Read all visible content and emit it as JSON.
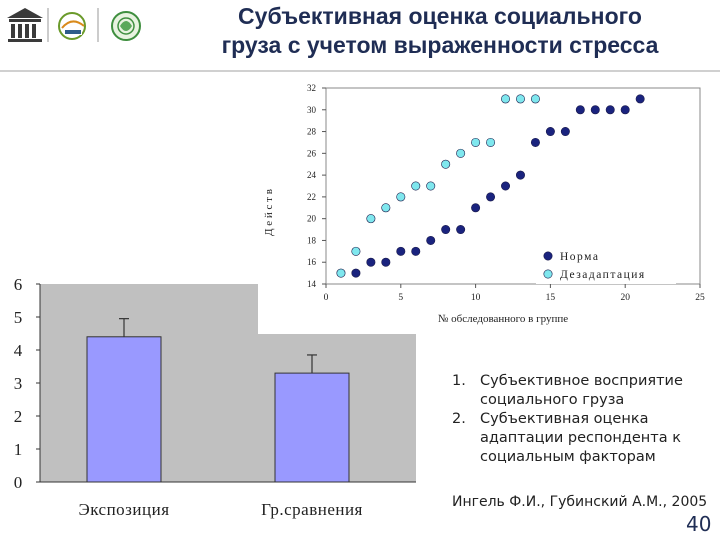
{
  "slide": {
    "title_line1": "Субъективная оценка социального",
    "title_line2": "груза с учетом выраженности стресса",
    "notes": [
      {
        "num": "1.",
        "text": "Субъективное восприятие социального груза"
      },
      {
        "num": "2.",
        "text": "Субъективная оценка адаптации респондента к социальным факторам"
      }
    ],
    "citation": "Ингель Ф.И., Губинский А.М., 2005",
    "page_number": "40",
    "logos": [
      "unesco-logo",
      "unitwin-logo",
      "green-emblem-logo"
    ]
  },
  "chart_data": [
    {
      "type": "scatter",
      "xlabel": "№ обследованного в группе",
      "ylabel": "Д е й с т в",
      "xlim": [
        0,
        25
      ],
      "ylim": [
        14,
        32
      ],
      "x_ticks": [
        "0",
        "5",
        "10",
        "15",
        "20",
        "25"
      ],
      "y_ticks": [
        "14",
        "16",
        "18",
        "20",
        "22",
        "24",
        "26",
        "28",
        "30",
        "32"
      ],
      "legend_position": "bottom-right",
      "series": [
        {
          "name": "Норма",
          "color": "#1a237e",
          "points": [
            [
              2,
              15
            ],
            [
              3,
              16
            ],
            [
              4,
              16
            ],
            [
              5,
              17
            ],
            [
              6,
              17
            ],
            [
              7,
              18
            ],
            [
              8,
              19
            ],
            [
              9,
              19
            ],
            [
              10,
              21
            ],
            [
              11,
              22
            ],
            [
              12,
              23
            ],
            [
              13,
              24
            ],
            [
              14,
              27
            ],
            [
              15,
              28
            ],
            [
              16,
              28
            ],
            [
              17,
              30
            ],
            [
              18,
              30
            ],
            [
              19,
              30
            ],
            [
              20,
              30
            ],
            [
              21,
              31
            ]
          ]
        },
        {
          "name": "Дезадаптация",
          "color": "#7fe7ee",
          "points": [
            [
              1,
              15
            ],
            [
              2,
              17
            ],
            [
              3,
              20
            ],
            [
              4,
              21
            ],
            [
              5,
              22
            ],
            [
              6,
              23
            ],
            [
              7,
              23
            ],
            [
              8,
              25
            ],
            [
              9,
              26
            ],
            [
              10,
              27
            ],
            [
              11,
              27
            ],
            [
              12,
              31
            ],
            [
              13,
              31
            ],
            [
              14,
              31
            ]
          ]
        }
      ]
    },
    {
      "type": "bar",
      "categories": [
        "Экспозиция",
        "Гр.сравнения"
      ],
      "values": [
        4.4,
        3.3
      ],
      "error_upper": [
        4.95,
        3.85
      ],
      "ylim": [
        0,
        6
      ],
      "y_ticks": [
        "0",
        "1",
        "2",
        "3",
        "4",
        "5",
        "6"
      ],
      "bar_color": "#9999ff",
      "plot_background": "#c0c0c0"
    }
  ]
}
